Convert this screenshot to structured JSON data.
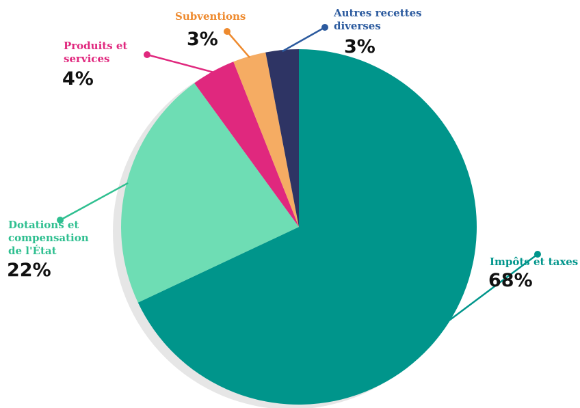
{
  "chart_data": {
    "type": "pie",
    "slices": [
      {
        "name": "Impôts et taxes",
        "value": 68,
        "label": "68%",
        "color": "#00958B"
      },
      {
        "name": "Dotations et compensation de l'État",
        "value": 22,
        "label": "22%",
        "color": "#6EDDB4"
      },
      {
        "name": "Produits et services",
        "value": 4,
        "label": "4%",
        "color": "#E0287E"
      },
      {
        "name": "Subventions",
        "value": 3,
        "label": "3%",
        "color": "#F5AC63"
      },
      {
        "name": "Autres recettes diverses",
        "value": 3,
        "label": "3%",
        "color": "#2E3464"
      }
    ]
  },
  "labels": {
    "impots": {
      "lines": [
        "Impôts et taxes"
      ],
      "pct": "68%",
      "color": "#00958B"
    },
    "dotations": {
      "lines": [
        "Dotations et",
        "compensation",
        "de l'État"
      ],
      "pct": "22%",
      "color": "#2FBF90"
    },
    "produits": {
      "lines": [
        "Produits et",
        "services"
      ],
      "pct": "4%",
      "color": "#E0287E"
    },
    "subventions": {
      "lines": [
        "Subventions"
      ],
      "pct": "3%",
      "color": "#EE8A2E"
    },
    "autres": {
      "lines": [
        "Autres recettes",
        "diverses"
      ],
      "pct": "3%",
      "color": "#2B5A9E"
    }
  }
}
